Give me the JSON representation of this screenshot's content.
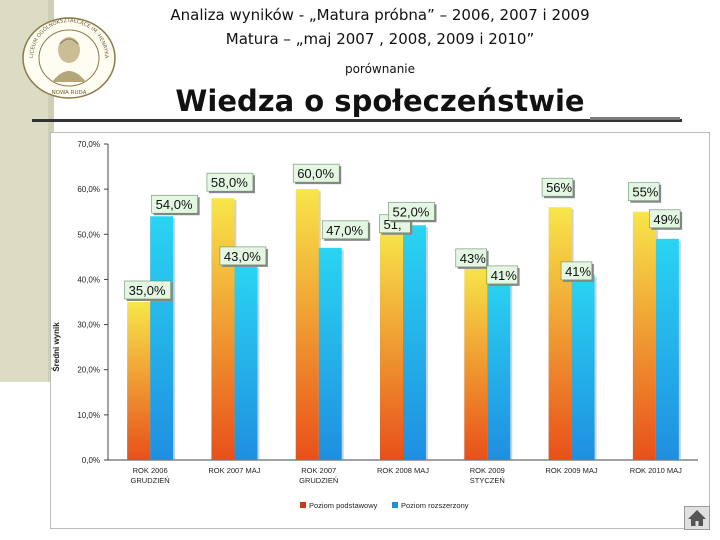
{
  "header": {
    "line1": "Analiza wyników  - „Matura próbna” – 2006, 2007 i 2009",
    "line2": "Matura – „maj 2007 , 2008, 2009 i 2010”",
    "line3": "porównanie",
    "subject_title": "Wiedza o społeczeństwie"
  },
  "logo": {
    "ring_text": "LICEUM OGÓLNOKSZTAŁCĄCE IM. HENRYKA SIENKIEWICZA",
    "bottom_text": "NOWA RUDA",
    "icon": "school-seal"
  },
  "colors": {
    "series_basic": "#e8501a",
    "series_extended": "#1f8fe0",
    "label_bg": "#e3f7e3",
    "left_bar": "#dcdcc4"
  },
  "chart_data": {
    "type": "bar",
    "title": "",
    "xlabel": "",
    "ylabel": "Średni wynik",
    "ylim": [
      0,
      70
    ],
    "yticks": [
      "0,0%",
      "10,0%",
      "20,0%",
      "30,0%",
      "40,0%",
      "50,0%",
      "60,0%",
      "70,0%"
    ],
    "categories": [
      [
        "ROK 2006",
        "GRUDZIEŃ"
      ],
      [
        "ROK 2007 MAJ"
      ],
      [
        "ROK 2007",
        "GRUDZIEŃ"
      ],
      [
        "ROK 2008 MAJ"
      ],
      [
        "ROK 2009",
        "STYCZEŃ"
      ],
      [
        "ROK 2009 MAJ"
      ],
      [
        "ROK 2010 MAJ"
      ]
    ],
    "series": [
      {
        "name": "Poziom podstawowy",
        "values": [
          35,
          58,
          60,
          51,
          43,
          56,
          55
        ],
        "labels": [
          "35,0%",
          "58,0%",
          "60,0%",
          "51,",
          "43%",
          "56%",
          "55%"
        ]
      },
      {
        "name": "Poziom rozszerzony",
        "values": [
          54,
          43,
          47,
          52,
          41,
          41,
          49
        ],
        "labels": [
          "54,0%",
          "43,0%",
          "47,0%",
          "52,0%",
          "41%",
          "41%",
          "49%"
        ]
      }
    ],
    "legend": "bottom",
    "grid": false
  },
  "nav": {
    "icon": "home-icon"
  }
}
